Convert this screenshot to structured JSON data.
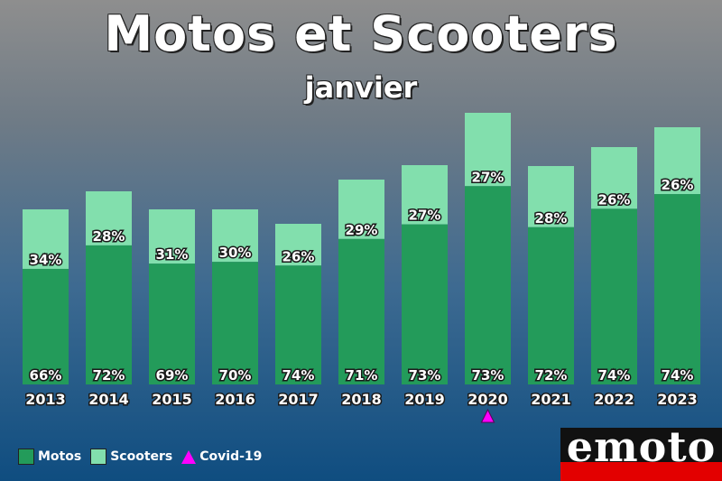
{
  "colors": {
    "motos": "#239b5a",
    "scooters": "#82dfad",
    "covid": "#ff00ff",
    "logo_band": "#e30000"
  },
  "chart_data": {
    "type": "bar",
    "stacked": true,
    "title": "Motos et Scooters",
    "subtitle": "janvier",
    "categories": [
      "2013",
      "2014",
      "2015",
      "2016",
      "2017",
      "2018",
      "2019",
      "2020",
      "2021",
      "2022",
      "2023"
    ],
    "totals": [
      194,
      214,
      194,
      194,
      178,
      227,
      243,
      301,
      242,
      263,
      285
    ],
    "series": [
      {
        "name": "Motos",
        "percent_labels": [
          "66%",
          "72%",
          "69%",
          "70%",
          "74%",
          "71%",
          "73%",
          "73%",
          "72%",
          "74%",
          "74%"
        ]
      },
      {
        "name": "Scooters",
        "percent_labels": [
          "34%",
          "28%",
          "31%",
          "30%",
          "26%",
          "29%",
          "27%",
          "27%",
          "28%",
          "26%",
          "26%"
        ]
      }
    ],
    "markers": [
      {
        "category": "2020",
        "name": "Covid-19",
        "shape": "triangle"
      }
    ],
    "legend_position": "bottom-left",
    "grid": false,
    "ylim": [
      0,
      301
    ]
  },
  "legend": {
    "motos_label": "Motos",
    "scooters_label": "Scooters",
    "covid_label": "Covid-19"
  },
  "logo": {
    "text": "emoto"
  }
}
